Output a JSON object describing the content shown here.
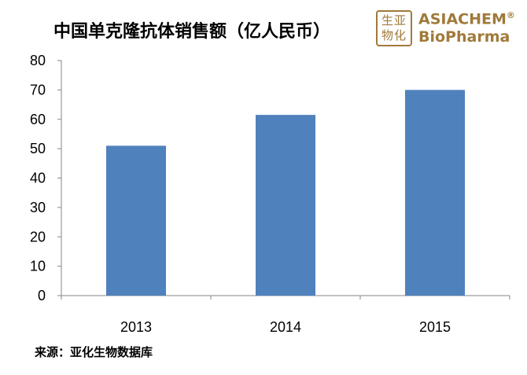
{
  "chart_data": {
    "type": "bar",
    "title": "中国单克隆抗体销售额（亿人民币）",
    "categories": [
      "2013",
      "2014",
      "2015"
    ],
    "values": [
      51,
      61.5,
      70
    ],
    "ylim": [
      0,
      80
    ],
    "yticks": [
      "0",
      "10",
      "20",
      "30",
      "40",
      "50",
      "60",
      "70",
      "80"
    ],
    "grid": false,
    "bar_color": "#4f81bd"
  },
  "logo": {
    "seal_text": "生亚物化",
    "brand_line1": "ASIACHEM",
    "brand_mark": "®",
    "brand_line2": "BioPharma"
  },
  "source": "来源：亚化生物数据库"
}
